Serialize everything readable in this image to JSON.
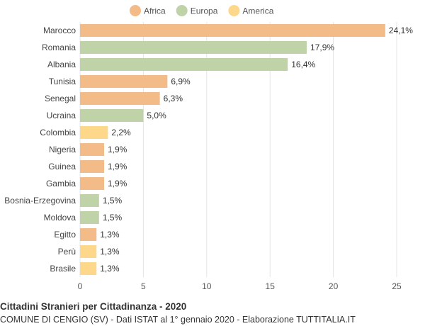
{
  "chart_data": {
    "type": "bar",
    "orientation": "horizontal",
    "categories": [
      "Marocco",
      "Romania",
      "Albania",
      "Tunisia",
      "Senegal",
      "Ucraina",
      "Colombia",
      "Nigeria",
      "Guinea",
      "Gambia",
      "Bosnia-Erzegovina",
      "Moldova",
      "Egitto",
      "Perù",
      "Brasile"
    ],
    "values": [
      24.1,
      17.9,
      16.4,
      6.9,
      6.3,
      5.0,
      2.2,
      1.9,
      1.9,
      1.9,
      1.5,
      1.5,
      1.3,
      1.3,
      1.3
    ],
    "value_labels": [
      "24,1%",
      "17,9%",
      "16,4%",
      "6,9%",
      "6,3%",
      "5,0%",
      "2,2%",
      "1,9%",
      "1,9%",
      "1,9%",
      "1,5%",
      "1,5%",
      "1,3%",
      "1,3%",
      "1,3%"
    ],
    "groups": [
      "Africa",
      "Europa",
      "Europa",
      "Africa",
      "Africa",
      "Europa",
      "America",
      "Africa",
      "Africa",
      "Africa",
      "Europa",
      "Europa",
      "Africa",
      "America",
      "America"
    ],
    "legend": [
      {
        "name": "Africa",
        "color": "#f2bb87"
      },
      {
        "name": "Europa",
        "color": "#c0d2a8"
      },
      {
        "name": "America",
        "color": "#fed88a"
      }
    ],
    "xlim": [
      0,
      25
    ],
    "xticks": [
      0,
      5,
      10,
      15,
      20,
      25
    ],
    "grid": true,
    "legend_position": "top"
  },
  "footer": {
    "title": "Cittadini Stranieri per Cittadinanza - 2020",
    "subtitle": "COMUNE DI CENGIO (SV) - Dati ISTAT al 1° gennaio 2020 - Elaborazione TUTTITALIA.IT"
  }
}
